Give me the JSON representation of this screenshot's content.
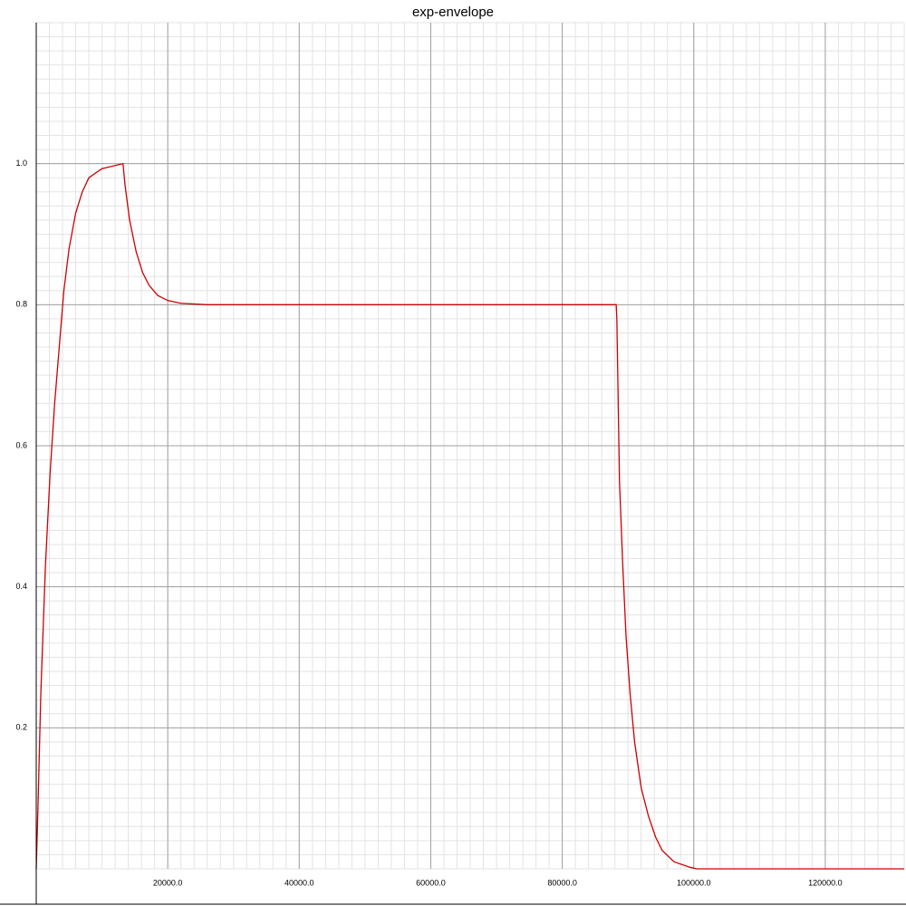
{
  "chart_data": {
    "type": "line",
    "title": "exp-envelope",
    "x": [
      0,
      300,
      700,
      1400,
      2100,
      2800,
      3500,
      4200,
      5000,
      6000,
      7000,
      8000,
      10000,
      13200,
      13500,
      14200,
      15200,
      16200,
      17200,
      18500,
      20000,
      22000,
      26000,
      88200,
      88300,
      88700,
      89200,
      89700,
      90300,
      91000,
      92000,
      93100,
      94200,
      95200,
      97000,
      99500,
      100500,
      132000
    ],
    "series": [
      {
        "color": "#cc0000",
        "values": [
          0,
          0.1,
          0.25,
          0.43,
          0.56,
          0.66,
          0.74,
          0.82,
          0.88,
          0.93,
          0.96,
          0.98,
          0.993,
          1.0,
          0.97,
          0.92,
          0.875,
          0.845,
          0.827,
          0.813,
          0.806,
          0.802,
          0.8,
          0.8,
          0.78,
          0.55,
          0.43,
          0.33,
          0.25,
          0.18,
          0.115,
          0.075,
          0.045,
          0.026,
          0.01,
          0.002,
          0,
          0
        ]
      }
    ],
    "xlim": [
      0,
      132000
    ],
    "ylim": [
      0,
      1.2
    ],
    "xticks": [
      {
        "value": 20000,
        "label": "20000.0"
      },
      {
        "value": 40000,
        "label": "40000.0"
      },
      {
        "value": 60000,
        "label": "60000.0"
      },
      {
        "value": 80000,
        "label": "80000.0"
      },
      {
        "value": 100000,
        "label": "100000.0"
      },
      {
        "value": 120000,
        "label": "120000.0"
      }
    ],
    "yticks": [
      0.2,
      0.4,
      0.6,
      {
        "value": 0.8,
        "label": "0.8"
      },
      {
        "value": 1.0,
        "label": "1.0"
      }
    ],
    "grid": true,
    "minor_grid": true
  }
}
